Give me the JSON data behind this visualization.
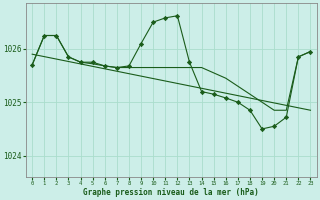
{
  "title": "Graphe pression niveau de la mer (hPa)",
  "bg_color": "#cceee8",
  "grid_color": "#aaddcc",
  "line_color": "#1a5c1a",
  "marker_color": "#1a5c1a",
  "xlim": [
    -0.5,
    23.5
  ],
  "ylim": [
    1023.6,
    1026.85
  ],
  "yticks": [
    1024,
    1025,
    1026
  ],
  "xticks": [
    0,
    1,
    2,
    3,
    4,
    5,
    6,
    7,
    8,
    9,
    10,
    11,
    12,
    13,
    14,
    15,
    16,
    17,
    18,
    19,
    20,
    21,
    22,
    23
  ],
  "series": [
    {
      "x": [
        0,
        1,
        2,
        3,
        4,
        5,
        6,
        7,
        8,
        9,
        10,
        11,
        12,
        13,
        14,
        15,
        16,
        17,
        18,
        19,
        20,
        21,
        22,
        23
      ],
      "y": [
        1025.7,
        1026.25,
        1026.25,
        1025.85,
        1025.75,
        1025.75,
        1025.68,
        1025.65,
        1025.68,
        1026.1,
        1026.5,
        1026.58,
        1026.62,
        1025.75,
        1025.2,
        1025.15,
        1025.08,
        1025.0,
        1024.85,
        1024.5,
        1024.55,
        1024.72,
        1025.85,
        1025.95
      ],
      "with_markers": true
    },
    {
      "x": [
        0,
        23
      ],
      "y": [
        1025.9,
        1024.85
      ],
      "with_markers": false
    },
    {
      "x": [
        0,
        1,
        2,
        3,
        4,
        5,
        6,
        7,
        8,
        9,
        10,
        11,
        12,
        13,
        14,
        15,
        16,
        17,
        18,
        19,
        20,
        21,
        22,
        23
      ],
      "y": [
        1025.7,
        1026.25,
        1026.25,
        1025.85,
        1025.75,
        1025.72,
        1025.68,
        1025.65,
        1025.65,
        1025.65,
        1025.65,
        1025.65,
        1025.65,
        1025.65,
        1025.65,
        1025.55,
        1025.45,
        1025.3,
        1025.15,
        1025.0,
        1024.85,
        1024.85,
        1025.85,
        1025.95
      ],
      "with_markers": false
    }
  ]
}
